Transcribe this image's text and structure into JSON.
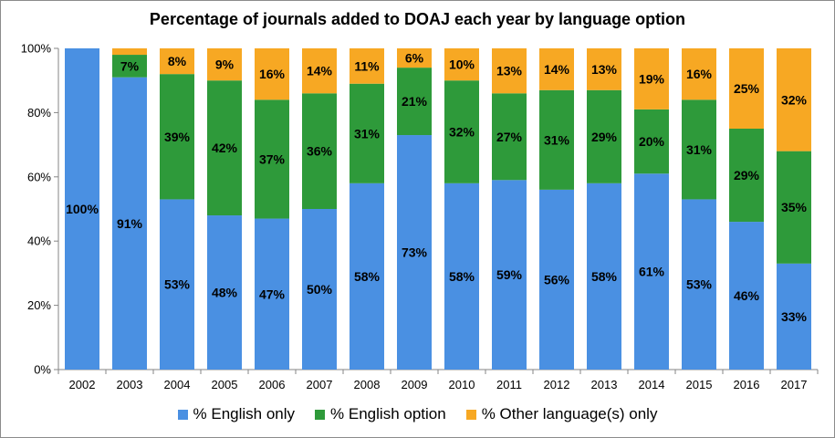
{
  "chart_data": {
    "type": "bar",
    "stacked": true,
    "title": "Percentage of journals added to DOAJ each year by language option",
    "xlabel": "",
    "ylabel": "",
    "ylim": [
      0,
      100
    ],
    "y_ticks": [
      "0%",
      "20%",
      "40%",
      "60%",
      "80%",
      "100%"
    ],
    "grid": false,
    "legend_position": "bottom",
    "categories": [
      "2002",
      "2003",
      "2004",
      "2005",
      "2006",
      "2007",
      "2008",
      "2009",
      "2010",
      "2011",
      "2012",
      "2013",
      "2014",
      "2015",
      "2016",
      "2017"
    ],
    "series": [
      {
        "name": "% English only",
        "color": "#4a90e2",
        "values": [
          100,
          91,
          53,
          48,
          47,
          50,
          58,
          73,
          58,
          59,
          56,
          58,
          61,
          53,
          46,
          33
        ],
        "labels": [
          "100%",
          "91%",
          "53%",
          "48%",
          "47%",
          "50%",
          "58%",
          "73%",
          "58%",
          "59%",
          "56%",
          "58%",
          "61%",
          "53%",
          "46%",
          "33%"
        ]
      },
      {
        "name": "% English option",
        "color": "#2e9a3a",
        "values": [
          0,
          7,
          39,
          42,
          37,
          36,
          31,
          21,
          32,
          27,
          31,
          29,
          20,
          31,
          29,
          35
        ],
        "labels": [
          "",
          "7%",
          "39%",
          "42%",
          "37%",
          "36%",
          "31%",
          "21%",
          "32%",
          "27%",
          "31%",
          "29%",
          "20%",
          "31%",
          "29%",
          "35%"
        ]
      },
      {
        "name": "% Other language(s) only",
        "color": "#f7a823",
        "values": [
          0,
          2,
          8,
          9,
          16,
          14,
          11,
          6,
          10,
          13,
          14,
          13,
          19,
          16,
          25,
          32
        ],
        "labels": [
          "",
          "",
          "8%",
          "9%",
          "16%",
          "14%",
          "11%",
          "6%",
          "10%",
          "13%",
          "14%",
          "13%",
          "19%",
          "16%",
          "25%",
          "32%"
        ]
      }
    ]
  }
}
